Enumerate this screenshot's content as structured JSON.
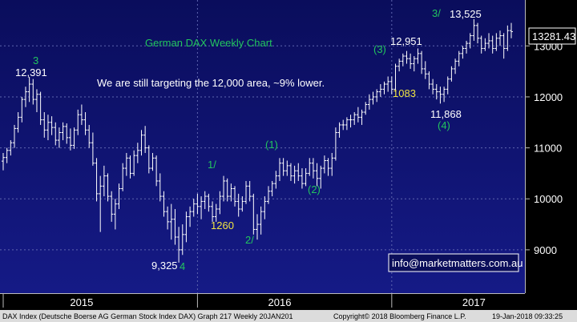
{
  "chart_data": {
    "type": "ohlc",
    "title": "German DAX Weekly Chart",
    "note": "We are still targeting the 12,000 area, ~9% lower.",
    "y_ticks": [
      9000,
      10000,
      11000,
      12000,
      13000
    ],
    "ylim": [
      8150,
      13900
    ],
    "x_period_labels": [
      "2015",
      "2016",
      "2017"
    ],
    "last_price": "13281.43",
    "contact": "info@marketmatters.com.au",
    "footer_left": "DAX Index (Deutsche Boerse AG German Stock Index DAX) Graph 217  Weekly 20JAN201",
    "footer_copyright": "Copyright© 2018 Bloomberg Finance L.P.",
    "footer_date": "19-Jan-2018 09:33:25",
    "annotations": [
      {
        "text": "3",
        "color": "#22c55e"
      },
      {
        "text": "12,391",
        "color": "#ffffff"
      },
      {
        "text": "9,325",
        "color": "#ffffff"
      },
      {
        "text": "4",
        "color": "#22c55e"
      },
      {
        "text": "1/",
        "color": "#22c55e"
      },
      {
        "text": "1260",
        "color": "#f0e442"
      },
      {
        "text": "2/",
        "color": "#22c55e"
      },
      {
        "text": "(1)",
        "color": "#22c55e"
      },
      {
        "text": "(2)",
        "color": "#22c55e"
      },
      {
        "text": "(3)",
        "color": "#22c55e"
      },
      {
        "text": "12,951",
        "color": "#ffffff"
      },
      {
        "text": "1083",
        "color": "#f0e442"
      },
      {
        "text": "11,868",
        "color": "#ffffff"
      },
      {
        "text": "(4)",
        "color": "#22c55e"
      },
      {
        "text": "3/",
        "color": "#22c55e"
      },
      {
        "text": "13,525",
        "color": "#ffffff"
      }
    ],
    "x_index_range": [
      0,
      158
    ],
    "bars": [
      {
        "o": 10740,
        "h": 10900,
        "l": 10560,
        "c": 10810
      },
      {
        "o": 10810,
        "h": 11000,
        "l": 10700,
        "c": 10950
      },
      {
        "o": 10950,
        "h": 11150,
        "l": 10850,
        "c": 11100
      },
      {
        "o": 11100,
        "h": 11450,
        "l": 11000,
        "c": 11380
      },
      {
        "o": 11380,
        "h": 11700,
        "l": 11300,
        "c": 11600
      },
      {
        "o": 11600,
        "h": 12000,
        "l": 11500,
        "c": 11950
      },
      {
        "o": 11950,
        "h": 12200,
        "l": 11800,
        "c": 12100
      },
      {
        "o": 12100,
        "h": 12391,
        "l": 11900,
        "c": 12250
      },
      {
        "o": 12250,
        "h": 12350,
        "l": 11850,
        "c": 11950
      },
      {
        "o": 11950,
        "h": 12150,
        "l": 11700,
        "c": 12050
      },
      {
        "o": 12050,
        "h": 12100,
        "l": 11450,
        "c": 11550
      },
      {
        "o": 11550,
        "h": 11700,
        "l": 11200,
        "c": 11350
      },
      {
        "o": 11350,
        "h": 11650,
        "l": 11150,
        "c": 11500
      },
      {
        "o": 11500,
        "h": 11620,
        "l": 11250,
        "c": 11400
      },
      {
        "o": 11400,
        "h": 11500,
        "l": 11050,
        "c": 11150
      },
      {
        "o": 11150,
        "h": 11400,
        "l": 11000,
        "c": 11300
      },
      {
        "o": 11300,
        "h": 11500,
        "l": 11150,
        "c": 11420
      },
      {
        "o": 11420,
        "h": 11480,
        "l": 11080,
        "c": 11200
      },
      {
        "o": 11200,
        "h": 11380,
        "l": 10950,
        "c": 11050
      },
      {
        "o": 11050,
        "h": 11400,
        "l": 10980,
        "c": 11350
      },
      {
        "o": 11350,
        "h": 11750,
        "l": 11250,
        "c": 11650
      },
      {
        "o": 11650,
        "h": 11850,
        "l": 11450,
        "c": 11550
      },
      {
        "o": 11550,
        "h": 11700,
        "l": 11250,
        "c": 11350
      },
      {
        "o": 11350,
        "h": 11450,
        "l": 11000,
        "c": 11100
      },
      {
        "o": 11100,
        "h": 11300,
        "l": 10650,
        "c": 10700
      },
      {
        "o": 10700,
        "h": 10800,
        "l": 9950,
        "c": 10100
      },
      {
        "o": 10100,
        "h": 10450,
        "l": 9350,
        "c": 10250
      },
      {
        "o": 10250,
        "h": 10650,
        "l": 10050,
        "c": 10450
      },
      {
        "o": 10450,
        "h": 10500,
        "l": 9950,
        "c": 10050
      },
      {
        "o": 10050,
        "h": 10150,
        "l": 9550,
        "c": 9700
      },
      {
        "o": 9700,
        "h": 10000,
        "l": 9400,
        "c": 9900
      },
      {
        "o": 9900,
        "h": 10300,
        "l": 9800,
        "c": 10200
      },
      {
        "o": 10200,
        "h": 10700,
        "l": 10150,
        "c": 10600
      },
      {
        "o": 10600,
        "h": 10900,
        "l": 10450,
        "c": 10800
      },
      {
        "o": 10800,
        "h": 10850,
        "l": 10400,
        "c": 10500
      },
      {
        "o": 10500,
        "h": 10950,
        "l": 10450,
        "c": 10850
      },
      {
        "o": 10850,
        "h": 11100,
        "l": 10700,
        "c": 10950
      },
      {
        "o": 10950,
        "h": 11350,
        "l": 10850,
        "c": 11250
      },
      {
        "o": 11250,
        "h": 11430,
        "l": 10900,
        "c": 11000
      },
      {
        "o": 11000,
        "h": 11050,
        "l": 10500,
        "c": 10600
      },
      {
        "o": 10600,
        "h": 10900,
        "l": 10550,
        "c": 10800
      },
      {
        "o": 10800,
        "h": 10850,
        "l": 10250,
        "c": 10350
      },
      {
        "o": 10350,
        "h": 10500,
        "l": 9950,
        "c": 10050
      },
      {
        "o": 10050,
        "h": 10150,
        "l": 9650,
        "c": 9750
      },
      {
        "o": 9750,
        "h": 9850,
        "l": 9400,
        "c": 9550
      },
      {
        "o": 9550,
        "h": 9900,
        "l": 9200,
        "c": 9600
      },
      {
        "o": 9600,
        "h": 9800,
        "l": 9100,
        "c": 9250
      },
      {
        "o": 9250,
        "h": 9450,
        "l": 8750,
        "c": 9000
      },
      {
        "o": 9000,
        "h": 9500,
        "l": 8900,
        "c": 9300
      },
      {
        "o": 9300,
        "h": 9750,
        "l": 9150,
        "c": 9650
      },
      {
        "o": 9650,
        "h": 9850,
        "l": 9450,
        "c": 9750
      },
      {
        "o": 9750,
        "h": 10000,
        "l": 9650,
        "c": 9900
      },
      {
        "o": 9900,
        "h": 10100,
        "l": 9700,
        "c": 9850
      },
      {
        "o": 9850,
        "h": 10050,
        "l": 9600,
        "c": 9950
      },
      {
        "o": 9950,
        "h": 10150,
        "l": 9800,
        "c": 10050
      },
      {
        "o": 10050,
        "h": 10100,
        "l": 9750,
        "c": 9850
      },
      {
        "o": 9850,
        "h": 9950,
        "l": 9550,
        "c": 9650
      },
      {
        "o": 9650,
        "h": 9900,
        "l": 9550,
        "c": 9800
      },
      {
        "o": 9800,
        "h": 10150,
        "l": 9700,
        "c": 10050
      },
      {
        "o": 10050,
        "h": 10450,
        "l": 9950,
        "c": 10350
      },
      {
        "o": 10350,
        "h": 10400,
        "l": 9950,
        "c": 10050
      },
      {
        "o": 10050,
        "h": 10300,
        "l": 9950,
        "c": 10200
      },
      {
        "o": 10200,
        "h": 10250,
        "l": 9850,
        "c": 9950
      },
      {
        "o": 9950,
        "h": 10100,
        "l": 9650,
        "c": 9800
      },
      {
        "o": 9800,
        "h": 10050,
        "l": 9750,
        "c": 9950
      },
      {
        "o": 9950,
        "h": 10350,
        "l": 9900,
        "c": 10250
      },
      {
        "o": 10250,
        "h": 10350,
        "l": 9950,
        "c": 10050
      },
      {
        "o": 10050,
        "h": 10100,
        "l": 9300,
        "c": 9400
      },
      {
        "o": 9400,
        "h": 9700,
        "l": 9200,
        "c": 9500
      },
      {
        "o": 9500,
        "h": 9850,
        "l": 9300,
        "c": 9750
      },
      {
        "o": 9750,
        "h": 10050,
        "l": 9600,
        "c": 9950
      },
      {
        "o": 9950,
        "h": 10250,
        "l": 9900,
        "c": 10150
      },
      {
        "o": 10150,
        "h": 10350,
        "l": 10050,
        "c": 10300
      },
      {
        "o": 10300,
        "h": 10550,
        "l": 10200,
        "c": 10450
      },
      {
        "o": 10450,
        "h": 10800,
        "l": 10350,
        "c": 10700
      },
      {
        "o": 10700,
        "h": 10800,
        "l": 10450,
        "c": 10550
      },
      {
        "o": 10550,
        "h": 10750,
        "l": 10450,
        "c": 10650
      },
      {
        "o": 10650,
        "h": 10700,
        "l": 10350,
        "c": 10450
      },
      {
        "o": 10450,
        "h": 10650,
        "l": 10300,
        "c": 10550
      },
      {
        "o": 10550,
        "h": 10700,
        "l": 10350,
        "c": 10450
      },
      {
        "o": 10450,
        "h": 10600,
        "l": 10200,
        "c": 10300
      },
      {
        "o": 10300,
        "h": 10600,
        "l": 10250,
        "c": 10500
      },
      {
        "o": 10500,
        "h": 10800,
        "l": 10450,
        "c": 10700
      },
      {
        "o": 10700,
        "h": 10800,
        "l": 10400,
        "c": 10550
      },
      {
        "o": 10550,
        "h": 10700,
        "l": 10250,
        "c": 10400
      },
      {
        "o": 10400,
        "h": 10650,
        "l": 10200,
        "c": 10600
      },
      {
        "o": 10600,
        "h": 10850,
        "l": 10500,
        "c": 10750
      },
      {
        "o": 10750,
        "h": 10800,
        "l": 10450,
        "c": 10600
      },
      {
        "o": 10600,
        "h": 10900,
        "l": 10450,
        "c": 10800
      },
      {
        "o": 10800,
        "h": 11400,
        "l": 10750,
        "c": 11300
      },
      {
        "o": 11300,
        "h": 11500,
        "l": 11200,
        "c": 11450
      },
      {
        "o": 11450,
        "h": 11550,
        "l": 11350,
        "c": 11450
      },
      {
        "o": 11450,
        "h": 11600,
        "l": 11350,
        "c": 11550
      },
      {
        "o": 11550,
        "h": 11650,
        "l": 11400,
        "c": 11550
      },
      {
        "o": 11550,
        "h": 11700,
        "l": 11450,
        "c": 11650
      },
      {
        "o": 11650,
        "h": 11800,
        "l": 11500,
        "c": 11600
      },
      {
        "o": 11600,
        "h": 11750,
        "l": 11450,
        "c": 11700
      },
      {
        "o": 11700,
        "h": 11900,
        "l": 11650,
        "c": 11850
      },
      {
        "o": 11850,
        "h": 12050,
        "l": 11750,
        "c": 11950
      },
      {
        "o": 11950,
        "h": 12100,
        "l": 11850,
        "c": 12000
      },
      {
        "o": 12000,
        "h": 12150,
        "l": 11900,
        "c": 12100
      },
      {
        "o": 12100,
        "h": 12250,
        "l": 12000,
        "c": 12150
      },
      {
        "o": 12150,
        "h": 12300,
        "l": 12050,
        "c": 12250
      },
      {
        "o": 12250,
        "h": 12400,
        "l": 12100,
        "c": 12300
      },
      {
        "o": 12300,
        "h": 12400,
        "l": 12050,
        "c": 12150
      },
      {
        "o": 12150,
        "h": 12650,
        "l": 12100,
        "c": 12600
      },
      {
        "o": 12600,
        "h": 12750,
        "l": 12500,
        "c": 12700
      },
      {
        "o": 12700,
        "h": 12850,
        "l": 12600,
        "c": 12800
      },
      {
        "o": 12800,
        "h": 12900,
        "l": 12650,
        "c": 12750
      },
      {
        "o": 12750,
        "h": 12850,
        "l": 12550,
        "c": 12650
      },
      {
        "o": 12650,
        "h": 12800,
        "l": 12500,
        "c": 12750
      },
      {
        "o": 12750,
        "h": 12950,
        "l": 12650,
        "c": 12850
      },
      {
        "o": 12850,
        "h": 12900,
        "l": 12450,
        "c": 12550
      },
      {
        "o": 12550,
        "h": 12700,
        "l": 12350,
        "c": 12450
      },
      {
        "o": 12450,
        "h": 12500,
        "l": 12150,
        "c": 12250
      },
      {
        "o": 12250,
        "h": 12350,
        "l": 12050,
        "c": 12150
      },
      {
        "o": 12150,
        "h": 12250,
        "l": 11950,
        "c": 12100
      },
      {
        "o": 12100,
        "h": 12200,
        "l": 11868,
        "c": 12050
      },
      {
        "o": 12050,
        "h": 12200,
        "l": 11900,
        "c": 12150
      },
      {
        "o": 12150,
        "h": 12400,
        "l": 12050,
        "c": 12350
      },
      {
        "o": 12350,
        "h": 12600,
        "l": 12300,
        "c": 12550
      },
      {
        "o": 12550,
        "h": 12750,
        "l": 12450,
        "c": 12700
      },
      {
        "o": 12700,
        "h": 12900,
        "l": 12600,
        "c": 12850
      },
      {
        "o": 12850,
        "h": 13000,
        "l": 12750,
        "c": 12950
      },
      {
        "o": 12950,
        "h": 13100,
        "l": 12850,
        "c": 13050
      },
      {
        "o": 13050,
        "h": 13250,
        "l": 12950,
        "c": 13200
      },
      {
        "o": 13200,
        "h": 13525,
        "l": 13100,
        "c": 13400
      },
      {
        "o": 13400,
        "h": 13450,
        "l": 13050,
        "c": 13150
      },
      {
        "o": 13150,
        "h": 13200,
        "l": 12850,
        "c": 12950
      },
      {
        "o": 12950,
        "h": 13150,
        "l": 12900,
        "c": 13050
      },
      {
        "o": 13050,
        "h": 13250,
        "l": 12950,
        "c": 13100
      },
      {
        "o": 13100,
        "h": 13200,
        "l": 12850,
        "c": 12950
      },
      {
        "o": 12950,
        "h": 13250,
        "l": 12900,
        "c": 13150
      },
      {
        "o": 13150,
        "h": 13300,
        "l": 13000,
        "c": 13200
      },
      {
        "o": 13200,
        "h": 13250,
        "l": 12750,
        "c": 12950
      },
      {
        "o": 12950,
        "h": 13400,
        "l": 12900,
        "c": 13300
      },
      {
        "o": 13300,
        "h": 13450,
        "l": 13150,
        "c": 13280
      }
    ]
  }
}
